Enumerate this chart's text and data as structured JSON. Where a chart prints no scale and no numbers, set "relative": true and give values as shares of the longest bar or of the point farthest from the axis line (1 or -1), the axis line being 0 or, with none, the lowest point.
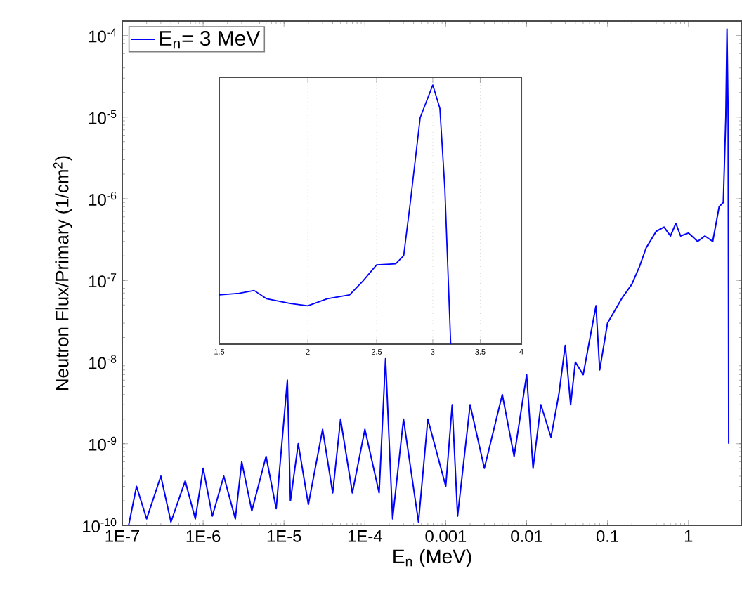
{
  "chart_data": [
    {
      "type": "line",
      "xlabel": "E$_{n}$ (MeV)",
      "ylabel": "Neutron Flux/Primary (1/cm$^{2}$)",
      "log": "xy",
      "legend": "top left",
      "xlim": [
        1e-07,
        4.6
      ],
      "ylim": [
        1e-10,
        0.00015
      ],
      "xticks": [
        {
          "value": 1e-07,
          "label": "1E-7"
        },
        {
          "value": 1e-06,
          "label": "1E-6"
        },
        {
          "value": 1e-05,
          "label": "1E-5"
        },
        {
          "value": 0.0001,
          "label": "1E-4"
        },
        {
          "value": 0.001,
          "label": "0.001"
        },
        {
          "value": 0.01,
          "label": "0.01"
        },
        {
          "value": 0.1,
          "label": "0.1"
        },
        {
          "value": 1,
          "label": "1"
        }
      ],
      "yticks": [
        {
          "value": 1e-10,
          "label": "10$^{-10}$"
        },
        {
          "value": 1e-09,
          "label": "10$^{-9}$"
        },
        {
          "value": 1e-08,
          "label": "10$^{-8}$"
        },
        {
          "value": 1e-07,
          "label": "10$^{-7}$"
        },
        {
          "value": 1e-06,
          "label": "10$^{-6}$"
        },
        {
          "value": 1e-05,
          "label": "10$^{-5}$"
        },
        {
          "value": 0.0001,
          "label": "10$^{-4}$"
        }
      ],
      "series": [
        {
          "name": "E$_{n}$= 3 MeV",
          "color": "#0000ff",
          "x": [
            1.2e-07,
            1.5e-07,
            2e-07,
            3e-07,
            4e-07,
            6e-07,
            8e-07,
            1e-06,
            1.3e-06,
            1.8e-06,
            2.5e-06,
            3e-06,
            4e-06,
            6e-06,
            8e-06,
            1.1e-05,
            1.2e-05,
            1.5e-05,
            2e-05,
            3e-05,
            4e-05,
            5e-05,
            7e-05,
            0.0001,
            0.00015,
            0.00018,
            0.00022,
            0.0003,
            0.00046,
            0.0006,
            0.001,
            0.0012,
            0.0014,
            0.002,
            0.003,
            0.005,
            0.007,
            0.01,
            0.012,
            0.015,
            0.02,
            0.025,
            0.03,
            0.035,
            0.04,
            0.05,
            0.072,
            0.08,
            0.1,
            0.15,
            0.2,
            0.25,
            0.3,
            0.4,
            0.5,
            0.6,
            0.7,
            0.8,
            1.0,
            1.3,
            1.6,
            2.0,
            2.4,
            2.7,
            2.9,
            3.0,
            3.1,
            3.15
          ],
          "values": [
            1e-10,
            3e-10,
            1.2e-10,
            4e-10,
            1.1e-10,
            3.5e-10,
            1.2e-10,
            5e-10,
            1.3e-10,
            4e-10,
            1.2e-10,
            6e-10,
            1.5e-10,
            7e-10,
            1.6e-10,
            6e-09,
            2e-10,
            1e-09,
            1.8e-10,
            1.5e-09,
            2.5e-10,
            2e-09,
            2.5e-10,
            1.5e-09,
            2.5e-10,
            1.1e-08,
            1.2e-10,
            2e-09,
            1.1e-10,
            2e-09,
            3e-10,
            3e-09,
            1.3e-10,
            3e-09,
            5e-10,
            4e-09,
            7e-10,
            7e-09,
            5e-10,
            3e-09,
            1.2e-09,
            4e-09,
            1.6e-08,
            3e-09,
            1e-08,
            7e-09,
            4.9e-08,
            8e-09,
            3e-08,
            6e-08,
            9e-08,
            1.5e-07,
            2.5e-07,
            4e-07,
            4.5e-07,
            3.5e-07,
            5e-07,
            3.5e-07,
            3.8e-07,
            3e-07,
            3.5e-07,
            3e-07,
            8e-07,
            9e-07,
            1e-05,
            0.00012,
            1e-05,
            1e-09
          ]
        }
      ]
    },
    {
      "type": "line",
      "relative": true,
      "log": "x",
      "grid": true,
      "xlim": [
        1.5,
        4
      ],
      "xticks": [
        1.5,
        2,
        2.5,
        3,
        3.5,
        4
      ],
      "tick_labels": "x",
      "series": [
        {
          "color": "#0000ff",
          "x": [
            1.5,
            1.6,
            1.68,
            1.75,
            1.89,
            2.0,
            2.13,
            2.29,
            2.39,
            2.5,
            2.66,
            2.73,
            2.79,
            2.88,
            3.0,
            3.07,
            3.12,
            3.18
          ],
          "values": [
            0.19,
            0.196,
            0.207,
            0.175,
            0.157,
            0.148,
            0.175,
            0.19,
            0.243,
            0.306,
            0.31,
            0.342,
            0.55,
            0.874,
            1,
            0.91,
            0.6,
            0
          ]
        }
      ]
    }
  ]
}
